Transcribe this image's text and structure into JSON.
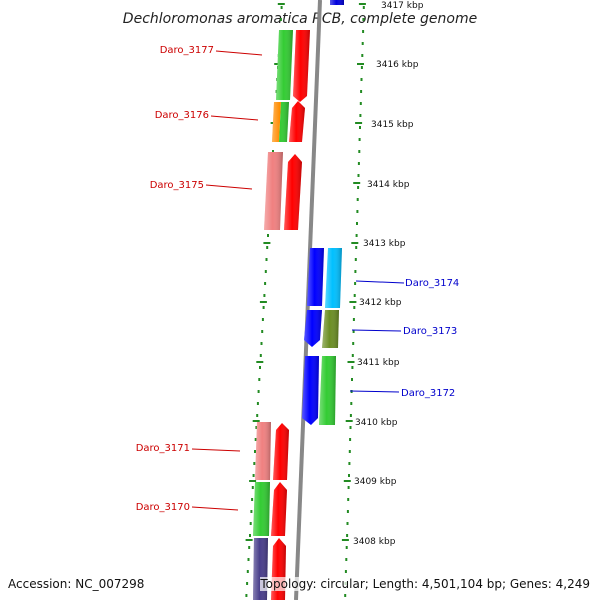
{
  "title": "Dechloromonas aromatica RCB, complete genome",
  "footer": {
    "accession": "Accession: NC_007298",
    "topology": "Topology: circular; Length: 4,501,104 bp; Genes: 4,249"
  },
  "kbp_labels": [
    "3417 kbp",
    "3416 kbp",
    "3415 kbp",
    "3414 kbp",
    "3413 kbp",
    "3412 kbp",
    "3411 kbp",
    "3410 kbp",
    "3409 kbp",
    "3408 kbp"
  ],
  "genes_left": [
    {
      "label": "Daro_3177",
      "color": "#cc0000"
    },
    {
      "label": "Daro_3176",
      "color": "#cc0000"
    },
    {
      "label": "Daro_3175",
      "color": "#cc0000"
    },
    {
      "label": "Daro_3171",
      "color": "#cc0000"
    },
    {
      "label": "Daro_3170",
      "color": "#cc0000"
    }
  ],
  "genes_right": [
    {
      "label": "Daro_3174",
      "color": "#0000cc"
    },
    {
      "label": "Daro_3173",
      "color": "#0000cc"
    },
    {
      "label": "Daro_3172",
      "color": "#0000cc"
    }
  ],
  "colors": {
    "forward_strand": "#ff0000",
    "reverse_strand": "#0000ff",
    "backbone": "#808080",
    "ruler_ticks": "#228b22",
    "cog_green": "#33cc33",
    "cog_pink": "#f08080",
    "cog_orange": "#ff8c00",
    "cog_cyan": "#00bfff",
    "cog_olive": "#6b8e23",
    "cog_navy": "#483d8b"
  }
}
